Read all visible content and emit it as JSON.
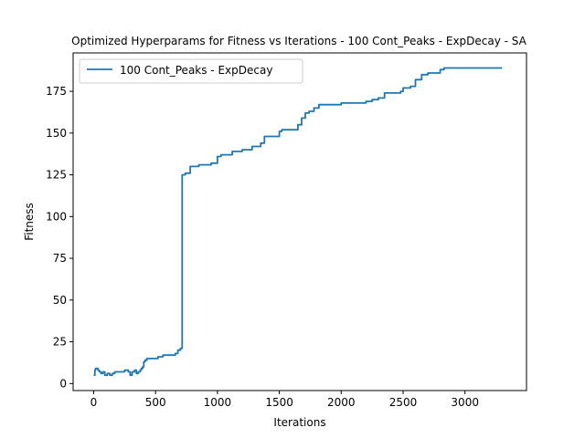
{
  "chart_data": {
    "type": "line",
    "title": "Optimized Hyperparams for Fitness vs Iterations - 100 Cont_Peaks - ExpDecay - SA",
    "xlabel": "Iterations",
    "ylabel": "Fitness",
    "xlim": [
      -166,
      3497
    ],
    "ylim": [
      -4.2,
      198
    ],
    "xticks": [
      0,
      500,
      1000,
      1500,
      2000,
      2500,
      3000
    ],
    "yticks": [
      0,
      25,
      50,
      75,
      100,
      125,
      150,
      175
    ],
    "grid": false,
    "legend": {
      "placement": "top-left",
      "entries": [
        "100 Cont_Peaks - ExpDecay"
      ]
    },
    "colors": {
      "series": "#1f77b4"
    },
    "series": [
      {
        "name": "100 Cont_Peaks - ExpDecay",
        "step": true,
        "x": [
          0,
          10,
          15,
          25,
          35,
          45,
          60,
          75,
          90,
          110,
          130,
          150,
          170,
          190,
          220,
          250,
          265,
          280,
          295,
          310,
          330,
          345,
          360,
          375,
          385,
          395,
          405,
          415,
          430,
          470,
          520,
          560,
          620,
          660,
          680,
          700,
          715,
          740,
          780,
          850,
          950,
          1000,
          1030,
          1050,
          1120,
          1200,
          1280,
          1350,
          1380,
          1420,
          1500,
          1520,
          1580,
          1650,
          1680,
          1710,
          1740,
          1780,
          1820,
          1850,
          2000,
          2100,
          2200,
          2250,
          2300,
          2350,
          2400,
          2480,
          2500,
          2560,
          2600,
          2650,
          2700,
          2800,
          2830,
          3000,
          3300
        ],
        "y": [
          5,
          8,
          9,
          9,
          8,
          7,
          6,
          7,
          5,
          6,
          5,
          6,
          7,
          7,
          7,
          8,
          8,
          7,
          5,
          7,
          8,
          6,
          7,
          8,
          9,
          10,
          13,
          14,
          15,
          15,
          16,
          17,
          17,
          18,
          20,
          21,
          125,
          126,
          130,
          131,
          132,
          136,
          137,
          137,
          139,
          140,
          142,
          144,
          148,
          148,
          151,
          152,
          152,
          155,
          159,
          162,
          163,
          165,
          167,
          167,
          168,
          168,
          169,
          170,
          171,
          174,
          174,
          175,
          177,
          178,
          182,
          185,
          186,
          188,
          189,
          189,
          189
        ]
      }
    ]
  }
}
